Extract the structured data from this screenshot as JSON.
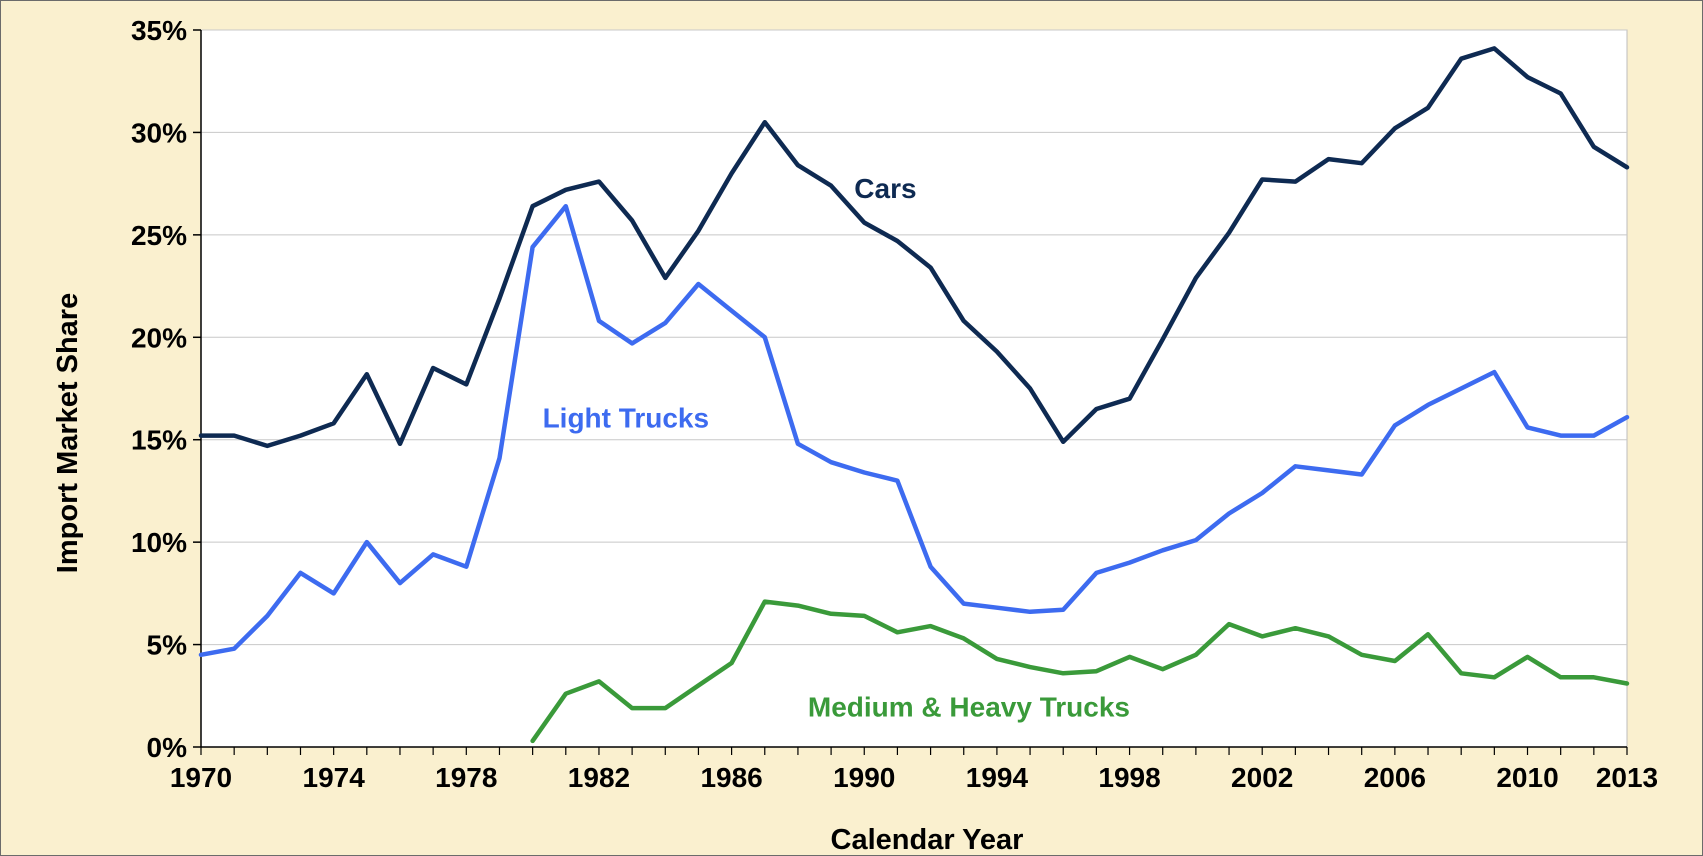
{
  "chart_data": {
    "type": "line",
    "title": "",
    "xlabel": "Calendar Year",
    "ylabel": "Import Market Share",
    "xlim": [
      1970,
      2013
    ],
    "ylim": [
      0,
      35
    ],
    "x_ticks": [
      "1970",
      "1974",
      "1978",
      "1982",
      "1986",
      "1990",
      "1994",
      "1998",
      "2002",
      "2006",
      "2010",
      "2013"
    ],
    "y_ticks": [
      "0%",
      "5%",
      "10%",
      "15%",
      "20%",
      "25%",
      "30%",
      "35%"
    ],
    "grid": "horizontal",
    "legend": "inline labels",
    "background_color": "#FAF0CF",
    "plot_background_color": "#FFFFFF",
    "series": [
      {
        "name": "Cars",
        "color": "#0E2A52",
        "label_anchor": [
          1989.7,
          26.8
        ],
        "x": [
          1970,
          1971,
          1972,
          1973,
          1974,
          1975,
          1976,
          1977,
          1978,
          1979,
          1980,
          1981,
          1982,
          1983,
          1984,
          1985,
          1986,
          1987,
          1988,
          1989,
          1990,
          1991,
          1992,
          1993,
          1994,
          1995,
          1996,
          1997,
          1998,
          1999,
          2000,
          2001,
          2002,
          2003,
          2004,
          2005,
          2006,
          2007,
          2008,
          2009,
          2010,
          2011,
          2012,
          2013
        ],
        "values": [
          15.2,
          15.2,
          14.7,
          15.2,
          15.8,
          18.2,
          14.8,
          18.5,
          17.7,
          21.9,
          26.4,
          27.2,
          27.6,
          25.7,
          22.9,
          25.2,
          28.0,
          30.5,
          28.4,
          27.4,
          25.6,
          24.7,
          23.4,
          20.8,
          19.3,
          17.5,
          14.9,
          16.5,
          17.0,
          19.9,
          22.9,
          25.1,
          27.7,
          27.6,
          28.7,
          28.5,
          30.2,
          31.2,
          33.6,
          34.1,
          32.7,
          31.9,
          29.3,
          28.3
        ]
      },
      {
        "name": "Light Trucks",
        "color": "#3D6BF0",
        "label_anchor": [
          1980.3,
          15.6
        ],
        "x": [
          1970,
          1971,
          1972,
          1973,
          1974,
          1975,
          1976,
          1977,
          1978,
          1979,
          1980,
          1981,
          1982,
          1983,
          1984,
          1985,
          1986,
          1987,
          1988,
          1989,
          1990,
          1991,
          1992,
          1993,
          1994,
          1995,
          1996,
          1997,
          1998,
          1999,
          2000,
          2001,
          2002,
          2003,
          2004,
          2005,
          2006,
          2007,
          2008,
          2009,
          2010,
          2011,
          2012,
          2013
        ],
        "values": [
          4.5,
          4.8,
          6.4,
          8.5,
          7.5,
          10.0,
          8.0,
          9.4,
          8.8,
          14.1,
          24.4,
          26.4,
          20.8,
          19.7,
          20.7,
          22.6,
          21.3,
          20.0,
          14.8,
          13.9,
          13.4,
          13.0,
          8.8,
          7.0,
          6.8,
          6.6,
          6.7,
          8.5,
          9.0,
          9.6,
          10.1,
          11.4,
          12.4,
          13.7,
          13.5,
          13.3,
          15.7,
          16.7,
          17.5,
          18.3,
          15.6,
          15.2,
          15.2,
          16.1
        ]
      },
      {
        "name": "Medium & Heavy Trucks",
        "color": "#3A9A3A",
        "label_anchor": [
          1988.3,
          1.5
        ],
        "x": [
          1980,
          1981,
          1982,
          1983,
          1984,
          1985,
          1986,
          1987,
          1988,
          1989,
          1990,
          1991,
          1992,
          1993,
          1994,
          1995,
          1996,
          1997,
          1998,
          1999,
          2000,
          2001,
          2002,
          2003,
          2004,
          2005,
          2006,
          2007,
          2008,
          2009,
          2010,
          2011,
          2012,
          2013
        ],
        "values": [
          0.3,
          2.6,
          3.2,
          1.9,
          1.9,
          3.0,
          4.1,
          7.1,
          6.9,
          6.5,
          6.4,
          5.6,
          5.9,
          5.3,
          4.3,
          3.9,
          3.6,
          3.7,
          4.4,
          3.8,
          4.5,
          6.0,
          5.4,
          5.8,
          5.4,
          4.5,
          4.2,
          5.5,
          3.6,
          3.4,
          4.4,
          3.4,
          3.4,
          3.1
        ]
      }
    ]
  }
}
